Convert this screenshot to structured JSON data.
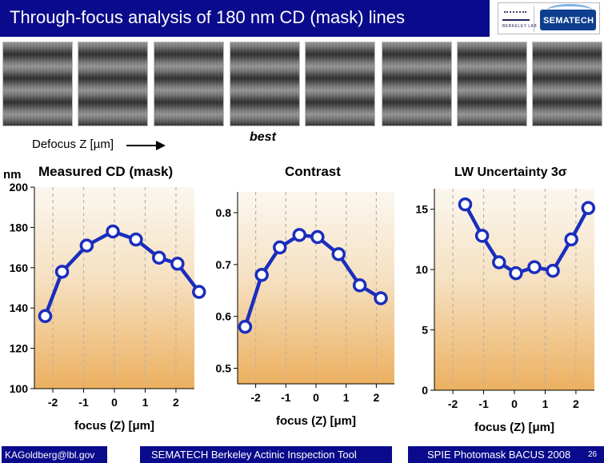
{
  "header": {
    "title": "Through-focus analysis of 180 nm CD (mask) lines",
    "logo_berkeley_text": "BERKELEY LAB",
    "logo_sematech_text": "SEMATECH"
  },
  "strips": [
    {
      "name": "image-strip-1"
    },
    {
      "name": "image-strip-2"
    },
    {
      "name": "image-strip-3"
    },
    {
      "name": "image-strip-4"
    },
    {
      "name": "image-strip-5"
    },
    {
      "name": "image-strip-6"
    },
    {
      "name": "image-strip-7"
    },
    {
      "name": "image-strip-8"
    }
  ],
  "annotations": {
    "defocus_label": "Defocus Z [µm]",
    "best_label": "best",
    "nm_label": "nm"
  },
  "panels": {
    "cd_title": "Measured CD (mask)",
    "contrast_title": "Contrast",
    "lw_title": "LW Uncertainty 3σ"
  },
  "chart_data": [
    {
      "type": "line",
      "title": "Measured CD (mask)",
      "ylabel": "nm",
      "xlabel": "focus (Z) [μm]",
      "xlim": [
        -2.6,
        2.6
      ],
      "ylim": [
        100,
        200
      ],
      "xticks": [
        -2,
        -1,
        0,
        1,
        2
      ],
      "yticks": [
        100,
        120,
        140,
        160,
        180,
        200
      ],
      "x": [
        -2.25,
        -1.7,
        -0.9,
        -0.05,
        0.7,
        1.45,
        2.05,
        2.75
      ],
      "y": [
        136,
        158,
        171,
        178,
        174,
        165,
        162,
        148
      ]
    },
    {
      "type": "line",
      "title": "Contrast",
      "xlabel": "focus (Z) [μm]",
      "xlim": [
        -2.6,
        2.6
      ],
      "ylim": [
        0.47,
        0.84
      ],
      "xticks": [
        -2,
        -1,
        0,
        1,
        2
      ],
      "yticks": [
        0.5,
        0.6,
        0.7,
        0.8
      ],
      "x": [
        -2.35,
        -1.8,
        -1.2,
        -0.55,
        0.05,
        0.75,
        1.45,
        2.15
      ],
      "y": [
        0.58,
        0.68,
        0.733,
        0.757,
        0.753,
        0.72,
        0.66,
        0.635
      ]
    },
    {
      "type": "line",
      "title": "LW Uncertainty 3σ",
      "xlabel": "focus (Z) [μm]",
      "xlim": [
        -2.6,
        2.6
      ],
      "ylim": [
        0,
        16.7
      ],
      "xticks": [
        -2,
        -1,
        0,
        1,
        2
      ],
      "yticks": [
        0,
        5,
        10,
        15
      ],
      "x": [
        -1.6,
        -1.05,
        -0.5,
        0.05,
        0.65,
        1.25,
        1.85,
        2.4
      ],
      "y": [
        15.4,
        12.8,
        10.6,
        9.7,
        10.2,
        9.9,
        12.5,
        15.1
      ]
    }
  ],
  "footer": {
    "email": "KAGoldberg@lbl.gov",
    "tool": "SEMATECH Berkeley Actinic Inspection Tool",
    "conference": "SPIE Photomask BACUS 2008",
    "page": "26"
  },
  "colors": {
    "title_bar": "#0a0a8c",
    "series_line": "#1a2ebd",
    "marker_fill": "#ffffff",
    "plot_top": "#fbf7ef",
    "plot_bottom": "#ecb060"
  }
}
